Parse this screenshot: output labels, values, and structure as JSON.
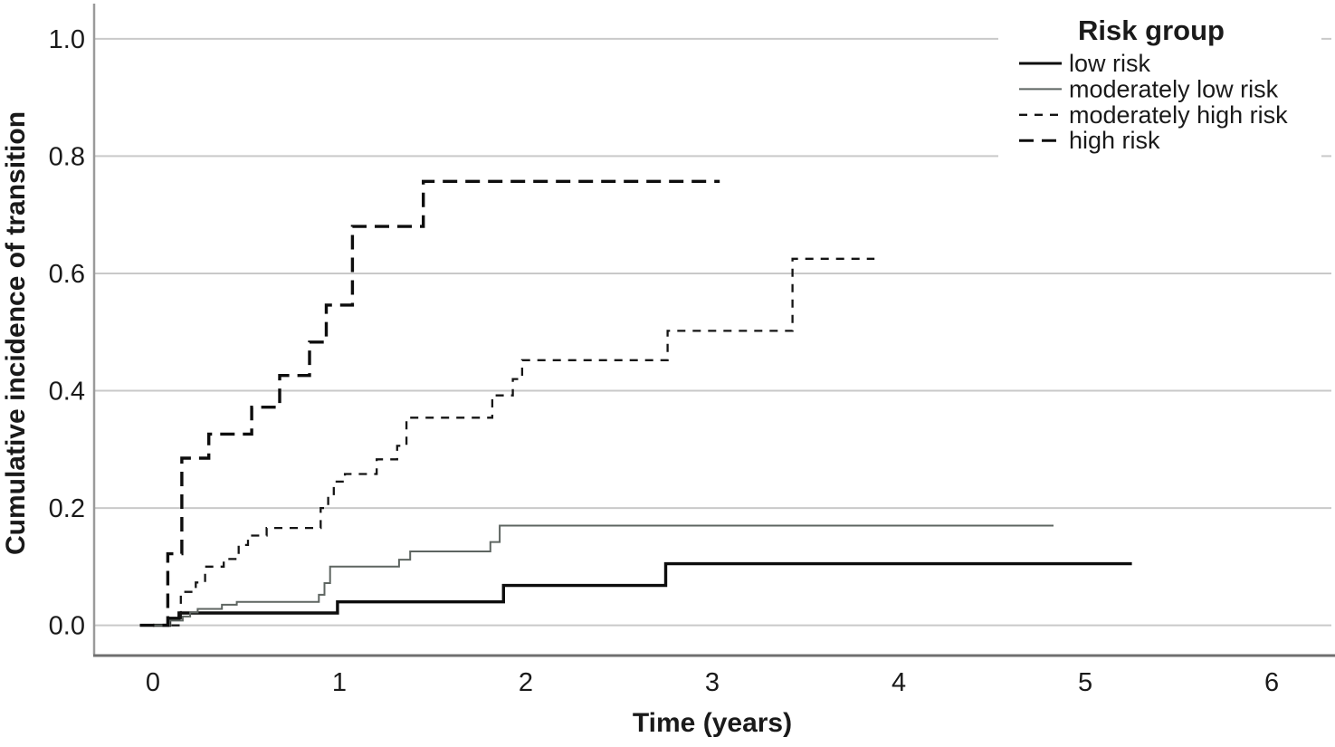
{
  "figure": {
    "description": "Cumulative incidence of transition by risk group (step plot)",
    "background": "#ffffff"
  },
  "chart_data": {
    "type": "line",
    "subtype": "step",
    "title": "",
    "xlabel": "Time (years)",
    "ylabel": "Cumulative incidence of transition",
    "x_ticks": [
      0,
      1,
      2,
      3,
      4,
      5,
      6
    ],
    "y_ticks": [
      {
        "label": "0.0",
        "value": 0.0
      },
      {
        "label": "0.2",
        "value": 0.2
      },
      {
        "label": "0.4",
        "value": 0.4
      },
      {
        "label": "0.6",
        "value": 0.6
      },
      {
        "label": "0.8",
        "value": 0.8
      },
      {
        "label": "1.0",
        "value": 1.0
      }
    ],
    "xlim": [
      -0.32,
      6.32
    ],
    "ylim": [
      -0.05,
      1.06
    ],
    "grid": "horizontal",
    "gridline_color": "#c9c9c9",
    "y_axis_color": "#9a9a9a",
    "x_axis_color": "#6f6f6f",
    "text_color": "#1a1a1a",
    "legend": {
      "title": "Risk group",
      "position": "top-right",
      "background": "#ffffff"
    },
    "series": [
      {
        "name": "low risk",
        "color": "#0d0d0d",
        "width": 3.4,
        "dash": null,
        "points": [
          [
            0,
            0
          ],
          [
            0.09,
            0.012
          ],
          [
            0.14,
            0.021
          ],
          [
            0.99,
            0.04
          ],
          [
            1.88,
            0.068
          ],
          [
            2.75,
            0.105
          ],
          [
            5.25,
            0.105
          ]
        ]
      },
      {
        "name": "moderately low risk",
        "color": "#5e6561",
        "width": 2,
        "dash": null,
        "points": [
          [
            0,
            0
          ],
          [
            0.09,
            0.008
          ],
          [
            0.16,
            0.015
          ],
          [
            0.2,
            0.022
          ],
          [
            0.24,
            0.028
          ],
          [
            0.37,
            0.035
          ],
          [
            0.45,
            0.04
          ],
          [
            0.89,
            0.052
          ],
          [
            0.92,
            0.072
          ],
          [
            0.95,
            0.1
          ],
          [
            1.32,
            0.112
          ],
          [
            1.38,
            0.126
          ],
          [
            1.81,
            0.142
          ],
          [
            1.86,
            0.17
          ],
          [
            4.83,
            0.17
          ]
        ]
      },
      {
        "name": "moderately high risk",
        "color": "#141414",
        "width": 2.3,
        "dash": [
          9,
          8
        ],
        "points": [
          [
            0.1,
            0
          ],
          [
            0.15,
            0.057
          ],
          [
            0.23,
            0.073
          ],
          [
            0.28,
            0.1
          ],
          [
            0.38,
            0.113
          ],
          [
            0.46,
            0.137
          ],
          [
            0.51,
            0.153
          ],
          [
            0.61,
            0.166
          ],
          [
            0.9,
            0.2
          ],
          [
            0.94,
            0.22
          ],
          [
            0.97,
            0.245
          ],
          [
            1.03,
            0.258
          ],
          [
            1.2,
            0.283
          ],
          [
            1.31,
            0.306
          ],
          [
            1.36,
            0.354
          ],
          [
            1.82,
            0.392
          ],
          [
            1.93,
            0.42
          ],
          [
            1.98,
            0.452
          ],
          [
            2.76,
            0.502
          ],
          [
            3.43,
            0.625
          ],
          [
            3.87,
            0.625
          ]
        ]
      },
      {
        "name": "high risk",
        "color": "#0d0d0d",
        "width": 3.4,
        "dash": [
          16,
          9
        ],
        "points": [
          [
            -0.07,
            0
          ],
          [
            0.08,
            0.122
          ],
          [
            0.155,
            0.285
          ],
          [
            0.3,
            0.326
          ],
          [
            0.53,
            0.372
          ],
          [
            0.68,
            0.426
          ],
          [
            0.84,
            0.483
          ],
          [
            0.93,
            0.546
          ],
          [
            1.07,
            0.68
          ],
          [
            1.45,
            0.757
          ],
          [
            3.04,
            0.757
          ]
        ]
      }
    ]
  }
}
